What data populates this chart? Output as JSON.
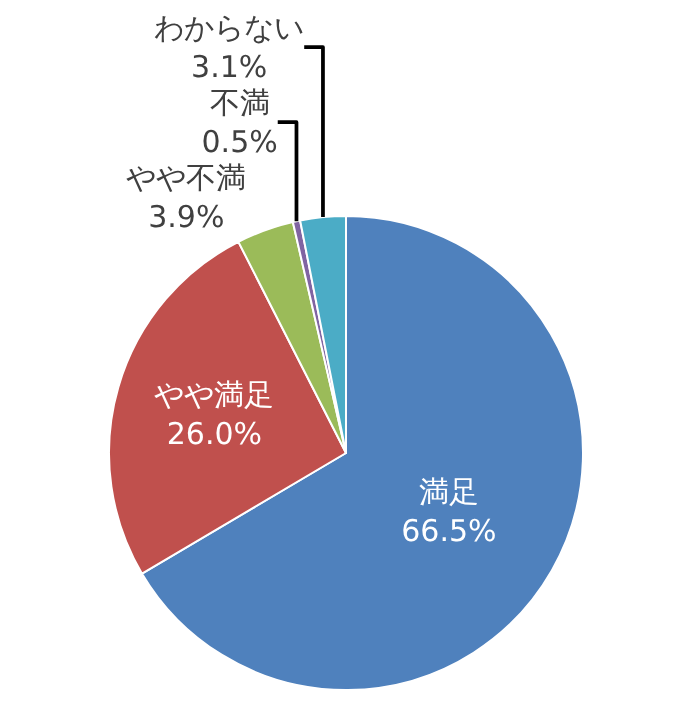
{
  "chart_data": {
    "type": "pie",
    "categories": [
      "満足",
      "やや満足",
      "やや不満",
      "不満",
      "わからない"
    ],
    "values": [
      66.5,
      26.0,
      3.9,
      0.5,
      3.1
    ],
    "value_labels": [
      "66.5%",
      "26.0%",
      "3.9%",
      "0.5%",
      "3.1%"
    ],
    "colors": [
      "#4f81bd",
      "#c0504d",
      "#9bbb59",
      "#8064a2",
      "#4bacc6"
    ],
    "legend": false
  }
}
